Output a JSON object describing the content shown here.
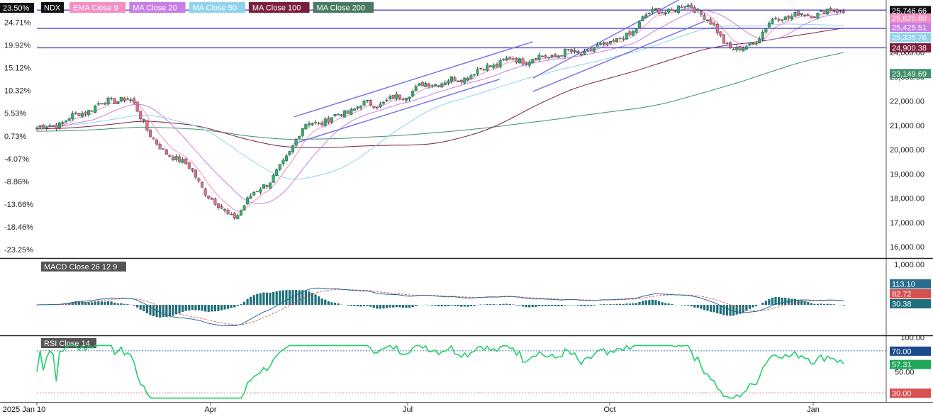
{
  "symbol": "NDX",
  "pct_badge": "23.50%",
  "legend": [
    {
      "label": "EMA Close 9",
      "bg": "#f48fc4",
      "fg": "#ffffff"
    },
    {
      "label": "MA Close 20",
      "bg": "#c77ee6",
      "fg": "#ffffff"
    },
    {
      "label": "MA Close 50",
      "bg": "#8fd3ee",
      "fg": "#ffffff"
    },
    {
      "label": "MA Close 100",
      "bg": "#7b1f3f",
      "fg": "#ffffff"
    },
    {
      "label": "MA Close 200",
      "bg": "#4a7a62",
      "fg": "#ffffff"
    }
  ],
  "left_axis_labels": [
    "24.71%",
    "19.92%",
    "15.12%",
    "10.32%",
    "5.53%",
    "0.73%",
    "-4.07%",
    "-8.86%",
    "-13.66%",
    "-18.46%",
    "-23.25%"
  ],
  "right_axis_labels": [
    "24,000.00",
    "23,000.00",
    "22,000.00",
    "21,000.00",
    "20,000.00",
    "19,000.00",
    "18,000.00",
    "17,000.00",
    "16,000.00"
  ],
  "price_tags": [
    {
      "text": "25,746.66",
      "value": 25746.66,
      "bg": "#111111",
      "fg": "#ffffff"
    },
    {
      "text": "25,620.60",
      "value": 25620.6,
      "bg": "#f48fc4",
      "fg": "#ffffff"
    },
    {
      "text": "25,425.51",
      "value": 25425.51,
      "bg": "#c77ee6",
      "fg": "#ffffff"
    },
    {
      "text": "25,335.76",
      "value": 25335.76,
      "bg": "#8fd3ee",
      "fg": "#ffffff"
    },
    {
      "text": "24,900.38",
      "value": 24900.38,
      "bg": "#7b1f3f",
      "fg": "#ffffff"
    },
    {
      "text": "23,149.69",
      "value": 23149.69,
      "bg": "#3f8f6a",
      "fg": "#ffffff"
    }
  ],
  "macd": {
    "label": "MACD Close 26 12 9",
    "axis_top": "1,000.00",
    "axis_bottom": "100.00",
    "tags": [
      {
        "text": "113.10",
        "value": 113.1,
        "bg": "#2b6d8c",
        "fg": "#ffffff"
      },
      {
        "text": "82.72",
        "value": 82.72,
        "bg": "#d94f4f",
        "fg": "#ffffff"
      },
      {
        "text": "30.38",
        "value": 30.38,
        "bg": "#1f6f7a",
        "fg": "#ffffff"
      }
    ]
  },
  "rsi": {
    "label": "RSI Close 14",
    "tags": [
      {
        "text": "70.00",
        "value": 70,
        "bg": "#1a4a8c",
        "fg": "#ffffff"
      },
      {
        "text": "57.31",
        "value": 57.31,
        "bg": "#1fa85a",
        "fg": "#ffffff"
      },
      {
        "text": "30.00",
        "value": 30,
        "bg": "#d94f4f",
        "fg": "#ffffff"
      }
    ],
    "level_50": "50.00"
  },
  "x_labels": [
    "2025 Jan 10",
    "Apr",
    "Jul",
    "Oct",
    "Jan"
  ],
  "colors": {
    "up": "#2db36b",
    "down": "#e0708a",
    "ema9": "#f48fc4",
    "ma20": "#c77ee6",
    "ma50": "#8fd3ee",
    "ma100": "#7b1f3f",
    "ma200": "#3f8f6a",
    "hline": "#5a52d6",
    "channel": "#7b73ea",
    "macd_line": "#1e6a96",
    "signal_line": "#d94f4f",
    "hist": "#1f6f7a",
    "rsi_line": "#1fcf6a"
  },
  "chart_data": {
    "type": "line",
    "series": [
      {
        "name": "NDX",
        "x": [
          "2025-01-10",
          "2025-02-18",
          "2025-03-10",
          "2025-04-08",
          "2025-04-22",
          "2025-05-13",
          "2025-06-10",
          "2025-07-10",
          "2025-08-12",
          "2025-09-10",
          "2025-10-01",
          "2025-10-10",
          "2025-10-29",
          "2025-11-20",
          "2025-12-10",
          "2026-01-06"
        ],
        "values": [
          20900,
          22100,
          19800,
          17300,
          18600,
          21100,
          21900,
          22800,
          23700,
          24000,
          24600,
          25600,
          25900,
          24100,
          25500,
          25746.66
        ]
      }
    ],
    "horizontal_lines": [
      25750,
      25000,
      24200
    ],
    "ylim": [
      15800,
      26050
    ]
  }
}
